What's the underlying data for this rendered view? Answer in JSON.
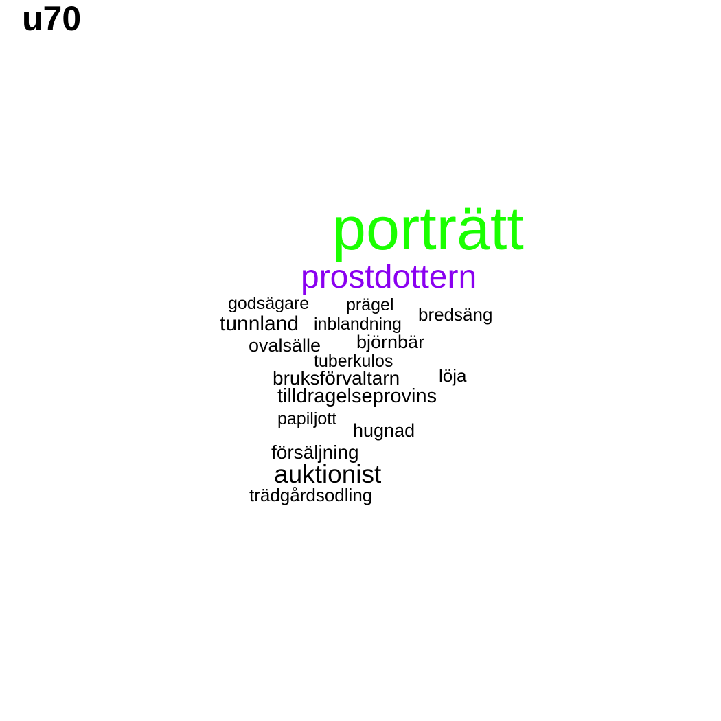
{
  "title": "u70",
  "words": [
    {
      "text": "porträtt",
      "color": "#1aff00"
    },
    {
      "text": "prostdottern",
      "color": "#8a00f0"
    },
    {
      "text": "godsägare",
      "color": "#000000"
    },
    {
      "text": "prägel",
      "color": "#000000"
    },
    {
      "text": "bredsäng",
      "color": "#000000"
    },
    {
      "text": "tunnland",
      "color": "#000000"
    },
    {
      "text": "inblandning",
      "color": "#000000"
    },
    {
      "text": "ovalsälle",
      "color": "#000000"
    },
    {
      "text": "björnbär",
      "color": "#000000"
    },
    {
      "text": "tuberkulos",
      "color": "#000000"
    },
    {
      "text": "bruksförvaltarn",
      "color": "#000000"
    },
    {
      "text": "löja",
      "color": "#000000"
    },
    {
      "text": "tilldragelseprovins",
      "color": "#000000"
    },
    {
      "text": "papiljott",
      "color": "#000000"
    },
    {
      "text": "hugnad",
      "color": "#000000"
    },
    {
      "text": "försäljning",
      "color": "#000000"
    },
    {
      "text": "auktionist",
      "color": "#000000"
    },
    {
      "text": "trädgårdsodling",
      "color": "#000000"
    }
  ]
}
